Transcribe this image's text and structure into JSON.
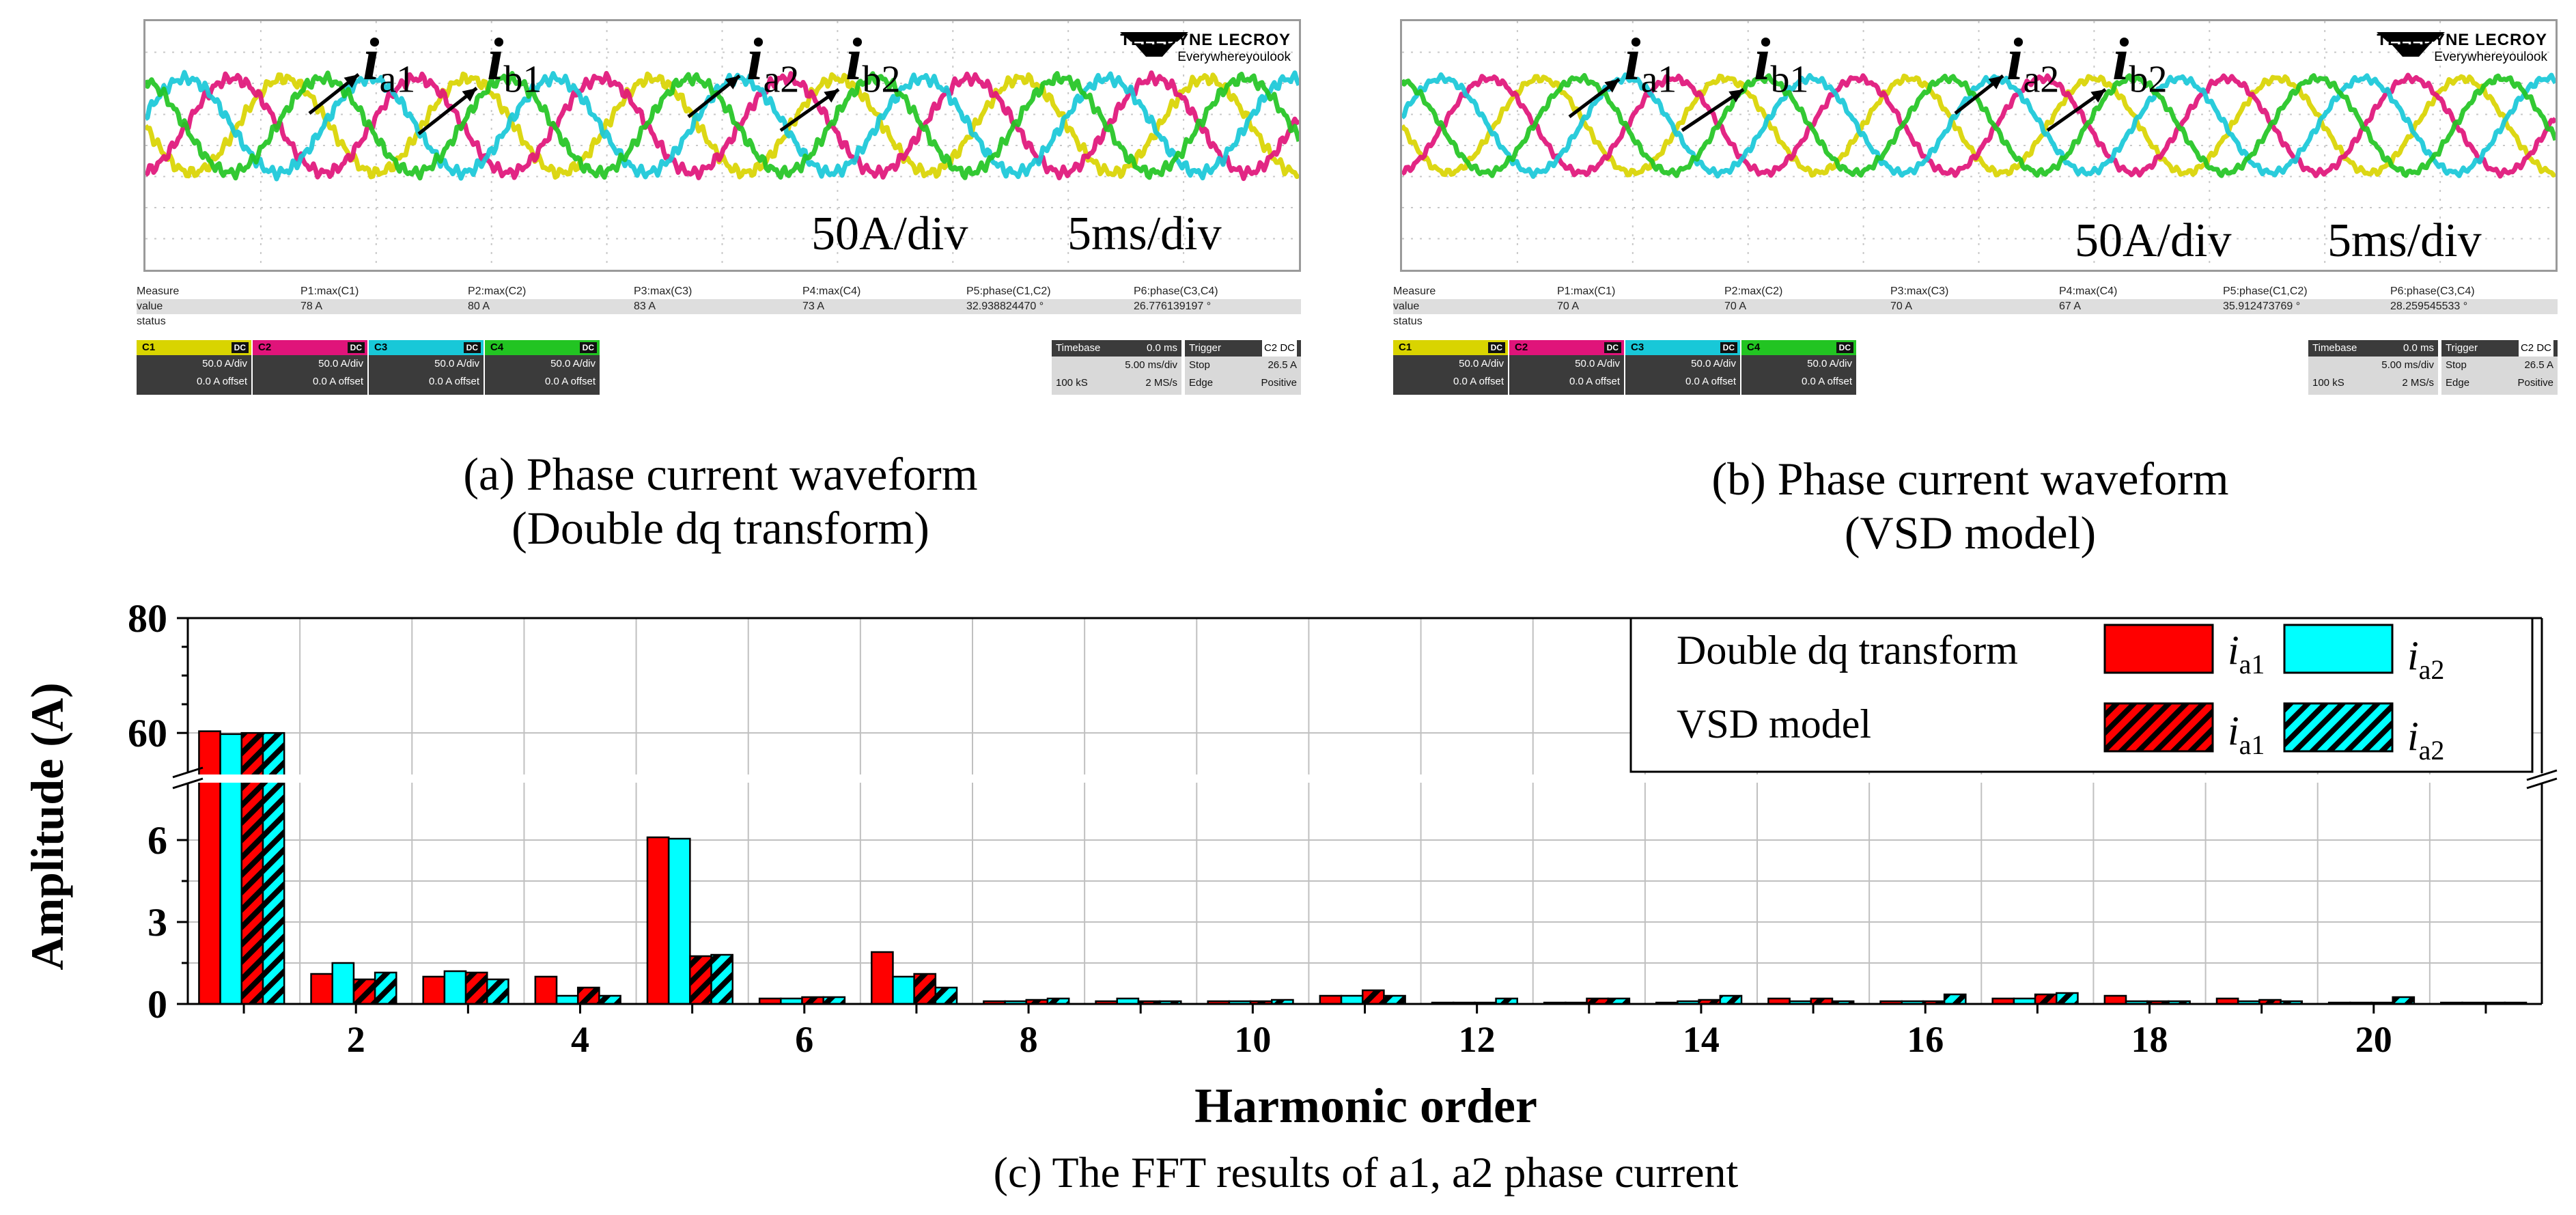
{
  "scopes": [
    {
      "id": "a",
      "brand_name": "TELEDYNE LECROY",
      "brand_tag": "Everywhereyoulook",
      "labels": [
        {
          "base": "i",
          "sub": "a1"
        },
        {
          "base": "i",
          "sub": "b1"
        },
        {
          "base": "i",
          "sub": "a2"
        },
        {
          "base": "i",
          "sub": "b2"
        }
      ],
      "amp_scale": "50A/div",
      "time_scale": "5ms/div",
      "measure_header": [
        "Measure",
        "P1:max(C1)",
        "P2:max(C2)",
        "P3:max(C3)",
        "P4:max(C4)",
        "P5:phase(C1,C2)",
        "P6:phase(C3,C4)"
      ],
      "measure_values": [
        "value",
        "78 A",
        "80 A",
        "83 A",
        "73 A",
        "32.938824470 °",
        "26.776139197 °"
      ],
      "measure_status": "status",
      "channels": [
        {
          "name": "C1",
          "coupling": "DC",
          "scale": "50.0 A/div",
          "offset": "0.0 A offset",
          "color": "#d9d400"
        },
        {
          "name": "C2",
          "coupling": "DC",
          "scale": "50.0 A/div",
          "offset": "0.0 A offset",
          "color": "#e0147a"
        },
        {
          "name": "C3",
          "coupling": "DC",
          "scale": "50.0 A/div",
          "offset": "0.0 A offset",
          "color": "#18c8d8"
        },
        {
          "name": "C4",
          "coupling": "DC",
          "scale": "50.0 A/div",
          "offset": "0.0 A offset",
          "color": "#22c422"
        }
      ],
      "timebase": {
        "label": "Timebase",
        "delay": "0.0 ms",
        "per_div": "5.00 ms/div",
        "samples": "100 kS",
        "rate": "2 MS/s"
      },
      "trigger": {
        "label": "Trigger",
        "chan": "C2",
        "coupling": "DC",
        "mode": "Stop",
        "level": "26.5 A",
        "type": "Edge",
        "slope": "Positive"
      },
      "caption_line1": "(a) Phase current waveform",
      "caption_line2": "(Double dq transform)"
    },
    {
      "id": "b",
      "brand_name": "TELEDYNE LECROY",
      "brand_tag": "Everywhereyoulook",
      "labels": [
        {
          "base": "i",
          "sub": "a1"
        },
        {
          "base": "i",
          "sub": "b1"
        },
        {
          "base": "i",
          "sub": "a2"
        },
        {
          "base": "i",
          "sub": "b2"
        }
      ],
      "amp_scale": "50A/div",
      "time_scale": "5ms/div",
      "measure_header": [
        "Measure",
        "P1:max(C1)",
        "P2:max(C2)",
        "P3:max(C3)",
        "P4:max(C4)",
        "P5:phase(C1,C2)",
        "P6:phase(C3,C4)"
      ],
      "measure_values": [
        "value",
        "70 A",
        "70 A",
        "70 A",
        "67 A",
        "35.912473769 °",
        "28.259545533 °"
      ],
      "measure_status": "status",
      "channels": [
        {
          "name": "C1",
          "coupling": "DC",
          "scale": "50.0 A/div",
          "offset": "0.0 A offset",
          "color": "#d9d400"
        },
        {
          "name": "C2",
          "coupling": "DC",
          "scale": "50.0 A/div",
          "offset": "0.0 A offset",
          "color": "#e0147a"
        },
        {
          "name": "C3",
          "coupling": "DC",
          "scale": "50.0 A/div",
          "offset": "0.0 A offset",
          "color": "#18c8d8"
        },
        {
          "name": "C4",
          "coupling": "DC",
          "scale": "50.0 A/div",
          "offset": "0.0 A offset",
          "color": "#22c422"
        }
      ],
      "timebase": {
        "label": "Timebase",
        "delay": "0.0 ms",
        "per_div": "5.00 ms/div",
        "samples": "100 kS",
        "rate": "2 MS/s"
      },
      "trigger": {
        "label": "Trigger",
        "chan": "C2",
        "coupling": "DC",
        "mode": "Stop",
        "level": "26.5 A",
        "type": "Edge",
        "slope": "Positive"
      },
      "caption_line1": "(b) Phase current waveform",
      "caption_line2": "(VSD model)"
    }
  ],
  "chart_data": {
    "type": "bar",
    "title": "",
    "caption": "(c) The FFT results of a1, a2 phase current",
    "xlabel": "Harmonic order",
    "ylabel": "Amplitude (A)",
    "categories": [
      1,
      2,
      3,
      4,
      5,
      6,
      7,
      8,
      9,
      10,
      11,
      12,
      13,
      14,
      15,
      16,
      17,
      18,
      19,
      20,
      21
    ],
    "x_tick_labels": [
      "2",
      "4",
      "6",
      "8",
      "10",
      "12",
      "14",
      "16",
      "18",
      "20"
    ],
    "x_tick_values": [
      2,
      4,
      6,
      8,
      10,
      12,
      14,
      16,
      18,
      20
    ],
    "y_axis": {
      "broken": true,
      "lower_range": [
        0,
        7
      ],
      "upper_range": [
        58,
        80
      ],
      "tick_labels": [
        "0",
        "3",
        "6",
        "60",
        "80"
      ],
      "tick_values": [
        0,
        3,
        6,
        60,
        80
      ]
    },
    "grid": true,
    "legend_position": "top-right",
    "legend": {
      "group1_label": "Double dq transform",
      "group2_label": "VSD model",
      "series_a1_label": {
        "base": "i",
        "sub": "a1"
      },
      "series_a2_label": {
        "base": "i",
        "sub": "a2"
      }
    },
    "series": [
      {
        "name": "Double dq transform i_a1",
        "color": "#ff0000",
        "hatched": false,
        "values": [
          60.3,
          1.1,
          1.0,
          1.0,
          6.1,
          0.2,
          1.9,
          0.1,
          0.1,
          0.1,
          0.3,
          0.05,
          0.05,
          0.05,
          0.2,
          0.1,
          0.2,
          0.3,
          0.2,
          0.05,
          0.05
        ]
      },
      {
        "name": "Double dq transform i_a2",
        "color": "#00ffff",
        "hatched": false,
        "values": [
          59.8,
          1.5,
          1.2,
          0.3,
          6.05,
          0.2,
          1.0,
          0.1,
          0.2,
          0.1,
          0.3,
          0.05,
          0.05,
          0.1,
          0.1,
          0.1,
          0.2,
          0.1,
          0.1,
          0.05,
          0.05
        ]
      },
      {
        "name": "VSD model i_a1",
        "color": "#ff0000",
        "hatched": true,
        "values": [
          60.0,
          0.9,
          1.15,
          0.6,
          1.75,
          0.25,
          1.1,
          0.15,
          0.1,
          0.1,
          0.5,
          0.05,
          0.2,
          0.15,
          0.2,
          0.1,
          0.35,
          0.1,
          0.15,
          0.05,
          0.05
        ]
      },
      {
        "name": "VSD model i_a2",
        "color": "#00ffff",
        "hatched": true,
        "values": [
          60.0,
          1.15,
          0.9,
          0.3,
          1.8,
          0.25,
          0.6,
          0.2,
          0.1,
          0.15,
          0.3,
          0.2,
          0.2,
          0.3,
          0.1,
          0.35,
          0.4,
          0.1,
          0.1,
          0.25,
          0.05
        ]
      }
    ]
  }
}
